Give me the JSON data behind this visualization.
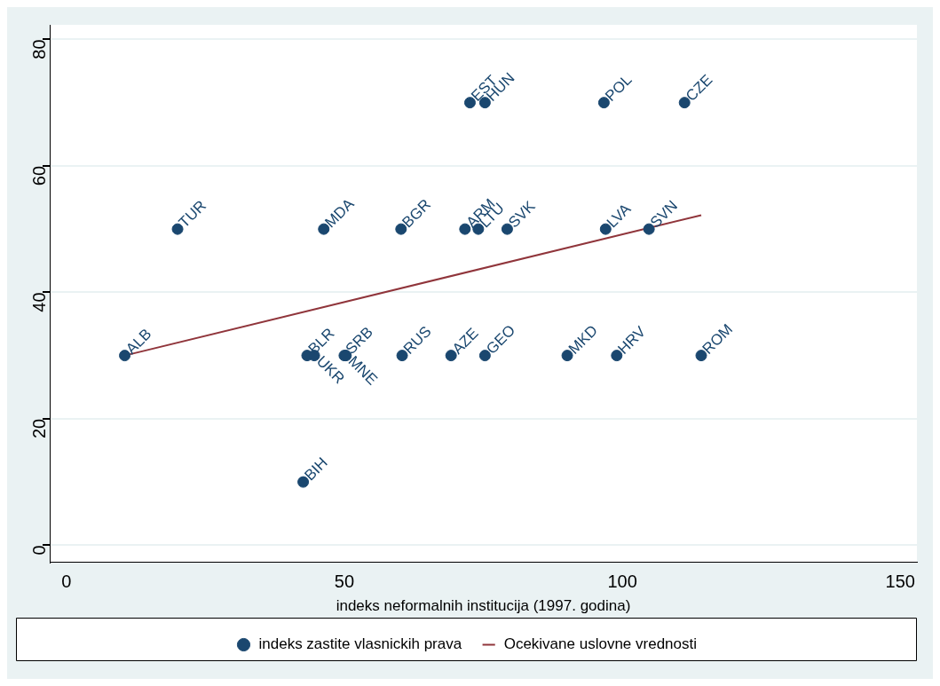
{
  "chart_data": {
    "type": "scatter",
    "xlabel": "indeks neformalnih institucija (1997. godina)",
    "xlim": [
      -3,
      153
    ],
    "xticks": [
      0,
      50,
      100,
      150
    ],
    "ylim": [
      -2.7,
      82.3
    ],
    "yticks": [
      0,
      20,
      40,
      60,
      80
    ],
    "grid": "y",
    "legend": "bottom",
    "marker": "circle",
    "series": [
      {
        "name": "indeks zastite vlasnickih prava",
        "type": "scatter",
        "color": "#1a476f",
        "x": [
          10.5,
          20,
          46.3,
          60.2,
          71.7,
          74.1,
          79.3,
          97,
          104.8,
          72.6,
          75.3,
          96.7,
          111.2,
          42.6,
          43.3,
          44.6,
          50,
          50.3,
          60.4,
          69.2,
          75.3,
          90.1,
          99,
          114.2
        ],
        "values": [
          30,
          50,
          50,
          50,
          50,
          50,
          50,
          50,
          50,
          70,
          70,
          70,
          70,
          10,
          30,
          30,
          30,
          30,
          30,
          30,
          30,
          30,
          30,
          30
        ],
        "value_labels": [
          "ALB",
          "TUR",
          "MDA",
          "BGR",
          "ARM",
          "LTU",
          "SVK",
          "LVA",
          "SVN",
          "EST",
          "HUN",
          "POL",
          "CZE",
          "BIH",
          "BLR",
          "UKR",
          "SRB",
          "MNE",
          "RUS",
          "AZE",
          "GEO",
          "MKD",
          "HRV",
          "ROM"
        ]
      },
      {
        "name": "Ocekivane uslovne vrednosti",
        "type": "line",
        "color": "#90353b",
        "line_style": "solid",
        "marker": "none",
        "x": [
          10.5,
          114.2
        ],
        "values": [
          30,
          52.2
        ]
      }
    ]
  }
}
